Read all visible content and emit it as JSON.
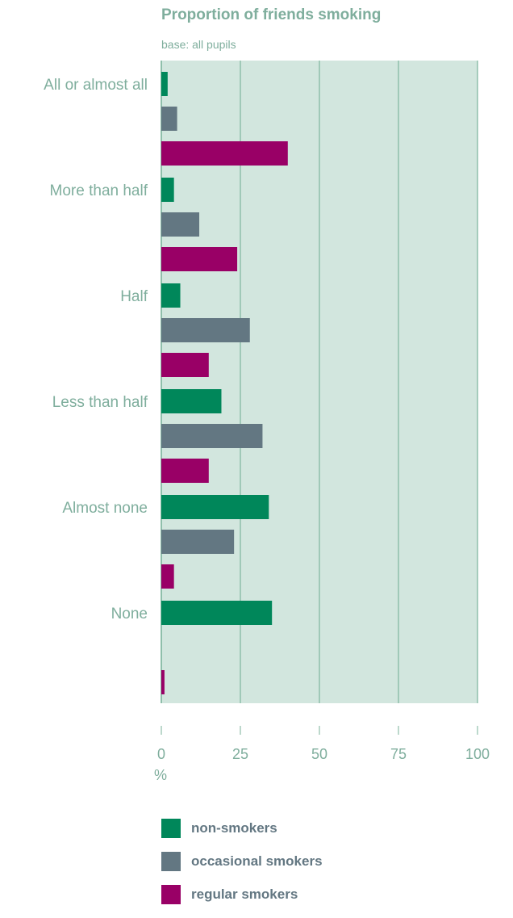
{
  "chart_data": {
    "type": "bar",
    "orientation": "horizontal",
    "title": "Proportion of friends smoking",
    "subtitle": "base: all pupils",
    "xlabel": "%",
    "xlim": [
      0,
      100
    ],
    "xticks": [
      0,
      25,
      50,
      75,
      100
    ],
    "grid": true,
    "legend_position": "bottom",
    "categories": [
      "All or almost all",
      "More than half",
      "Half",
      "Less than half",
      "Almost none",
      "None"
    ],
    "series": [
      {
        "name": "non-smokers",
        "color": "#00875a",
        "values": [
          2,
          4,
          6,
          19,
          34,
          35
        ]
      },
      {
        "name": "occasional smokers",
        "color": "#637782",
        "values": [
          5,
          12,
          28,
          32,
          23,
          0
        ]
      },
      {
        "name": "regular smokers",
        "color": "#990066",
        "values": [
          40,
          24,
          15,
          15,
          4,
          1
        ]
      }
    ],
    "colors": {
      "plot_background": "#d2e6de",
      "gridline": "#8fbfab",
      "text": "#7fae9d"
    }
  }
}
